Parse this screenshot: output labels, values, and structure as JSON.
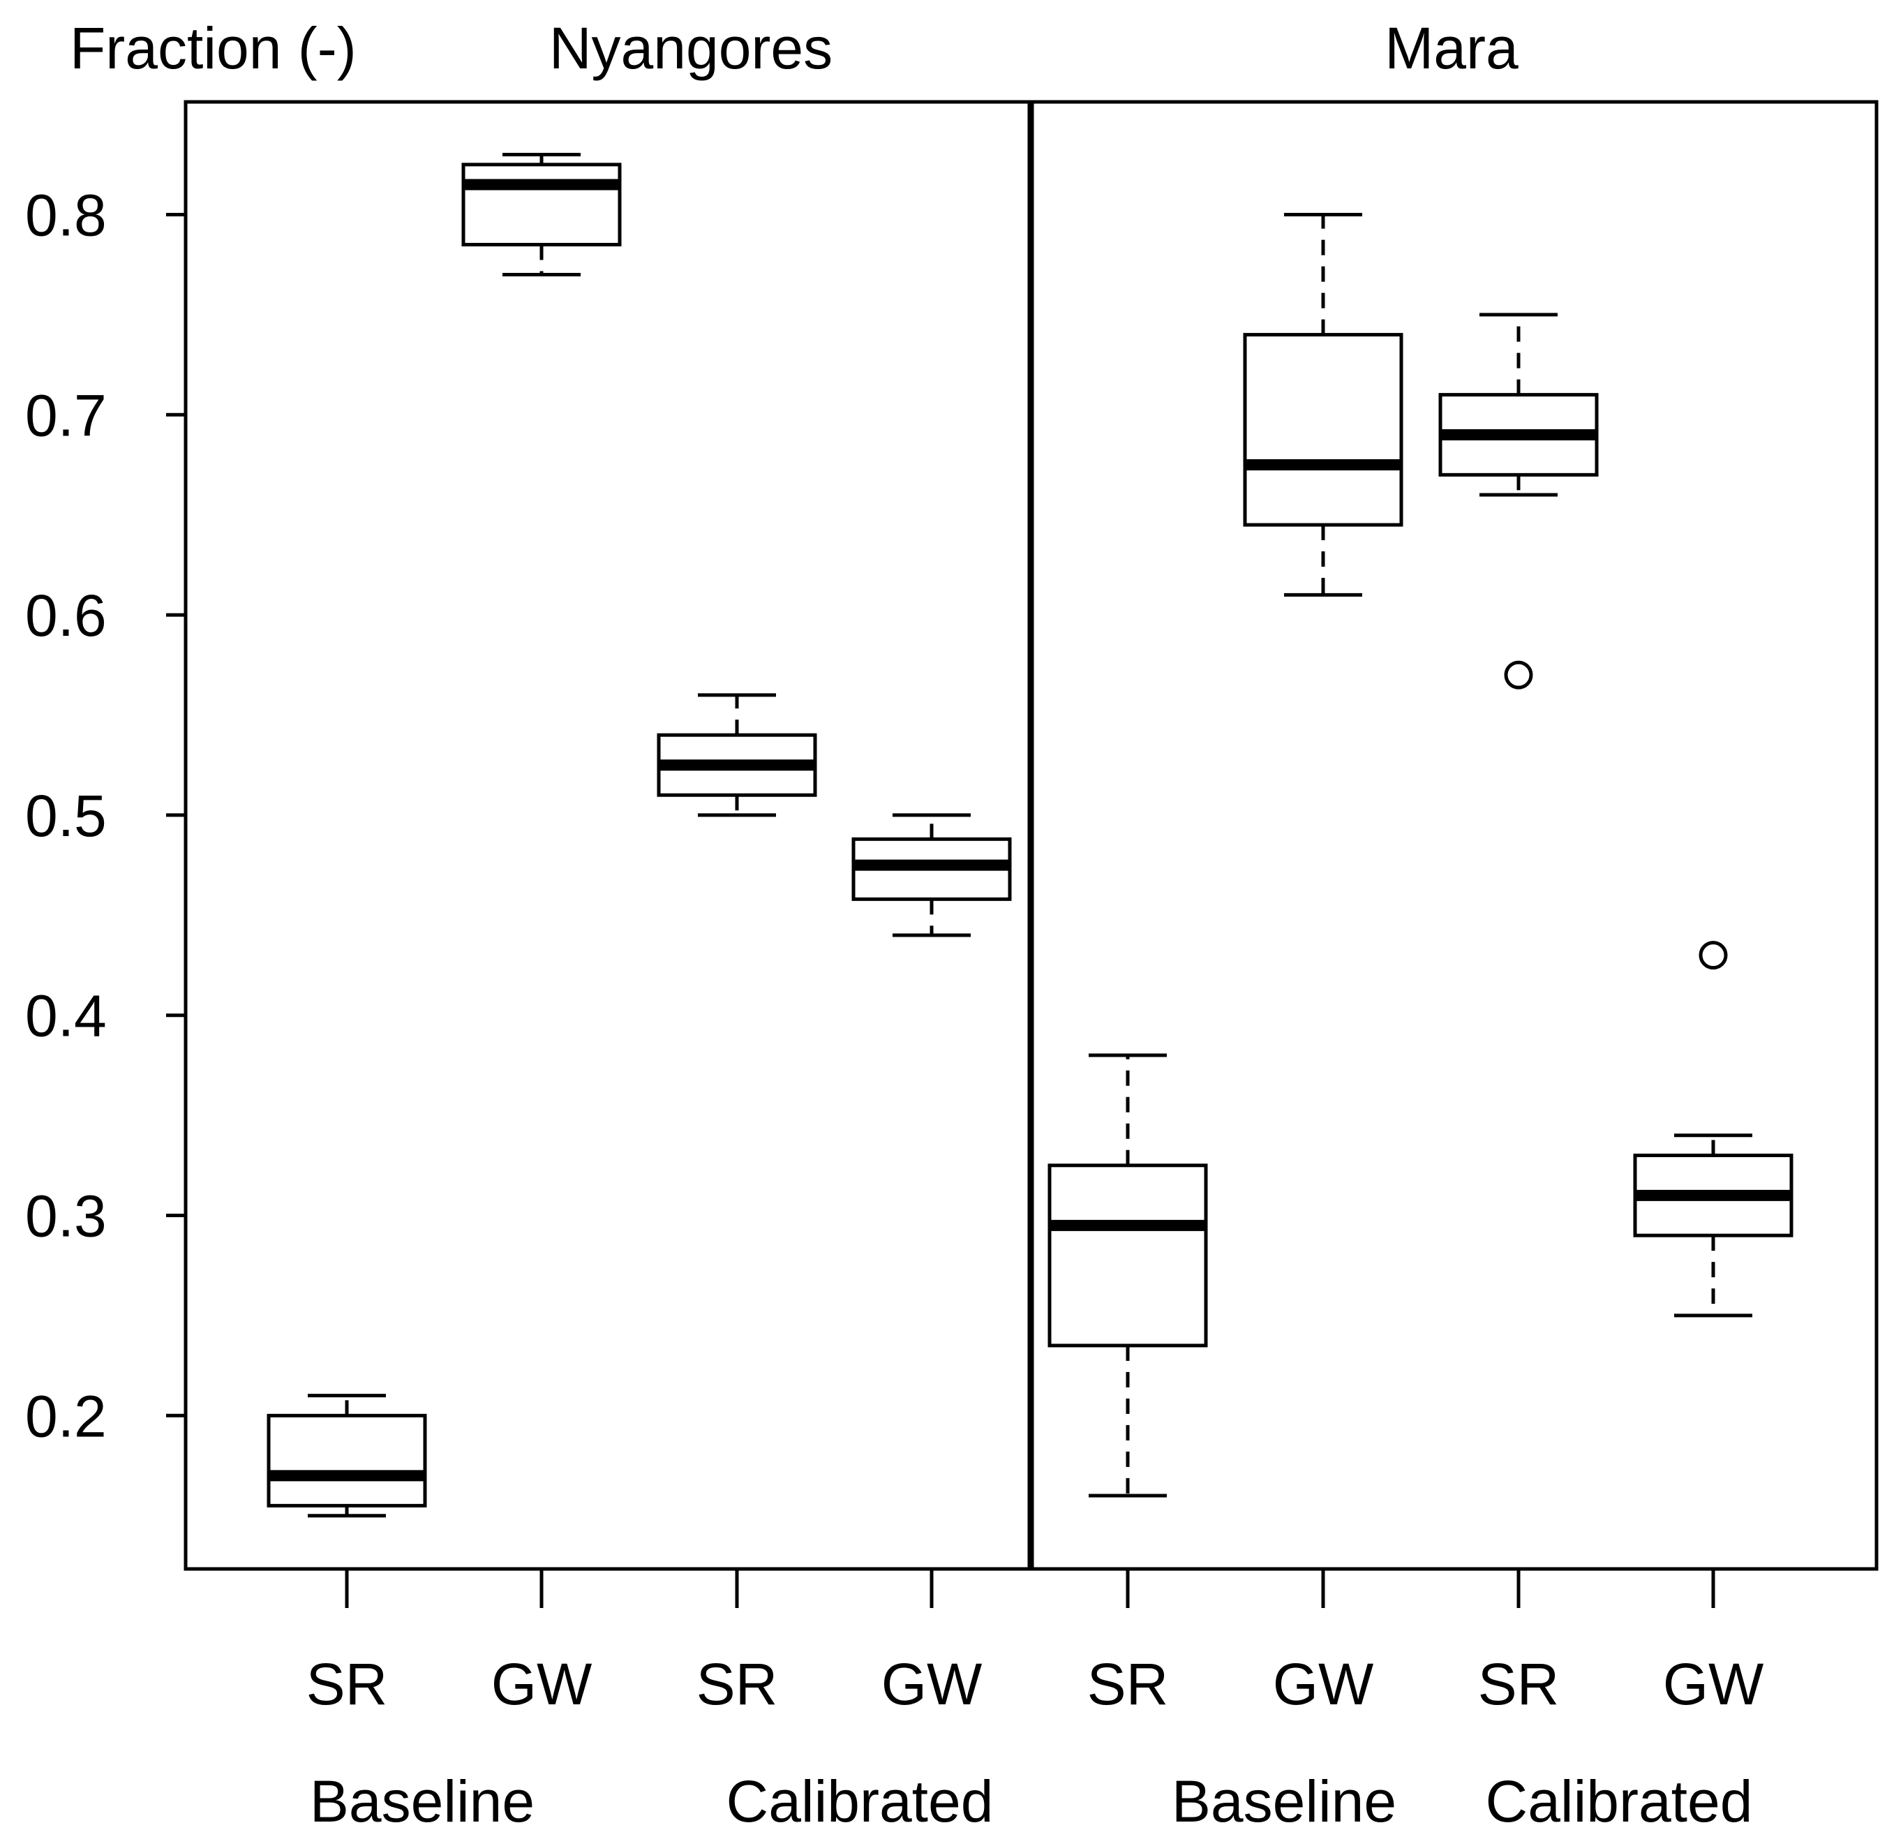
{
  "chart_data": {
    "type": "boxplot",
    "ylabel": "Fraction (-)",
    "ylim": [
      0.13,
      0.86
    ],
    "yticks": [
      0.2,
      0.3,
      0.4,
      0.5,
      0.6,
      0.7,
      0.8
    ],
    "ytick_labels": [
      "0.2",
      "0.3",
      "0.4",
      "0.5",
      "0.6",
      "0.7",
      "0.8"
    ],
    "panels": [
      {
        "title": "Nyangores",
        "groups": [
          {
            "label": "Baseline",
            "boxes": [
              {
                "label": "SR",
                "min": 0.15,
                "q1": 0.155,
                "median": 0.17,
                "q3": 0.2,
                "max": 0.21,
                "outliers": []
              },
              {
                "label": "GW",
                "min": 0.77,
                "q1": 0.785,
                "median": 0.815,
                "q3": 0.825,
                "max": 0.83,
                "outliers": []
              }
            ]
          },
          {
            "label": "Calibrated",
            "boxes": [
              {
                "label": "SR",
                "min": 0.5,
                "q1": 0.51,
                "median": 0.525,
                "q3": 0.54,
                "max": 0.56,
                "outliers": []
              },
              {
                "label": "GW",
                "min": 0.44,
                "q1": 0.458,
                "median": 0.475,
                "q3": 0.488,
                "max": 0.5,
                "outliers": []
              }
            ]
          }
        ]
      },
      {
        "title": "Mara",
        "groups": [
          {
            "label": "Baseline",
            "boxes": [
              {
                "label": "SR",
                "min": 0.16,
                "q1": 0.235,
                "median": 0.295,
                "q3": 0.325,
                "max": 0.38,
                "outliers": []
              },
              {
                "label": "GW",
                "min": 0.61,
                "q1": 0.645,
                "median": 0.675,
                "q3": 0.74,
                "max": 0.8,
                "outliers": []
              }
            ]
          },
          {
            "label": "Calibrated",
            "boxes": [
              {
                "label": "SR",
                "min": 0.66,
                "q1": 0.67,
                "median": 0.69,
                "q3": 0.71,
                "max": 0.75,
                "outliers": [
                  0.57
                ]
              },
              {
                "label": "GW",
                "min": 0.25,
                "q1": 0.29,
                "median": 0.31,
                "q3": 0.33,
                "max": 0.34,
                "outliers": [
                  0.43
                ]
              }
            ]
          }
        ]
      }
    ]
  }
}
